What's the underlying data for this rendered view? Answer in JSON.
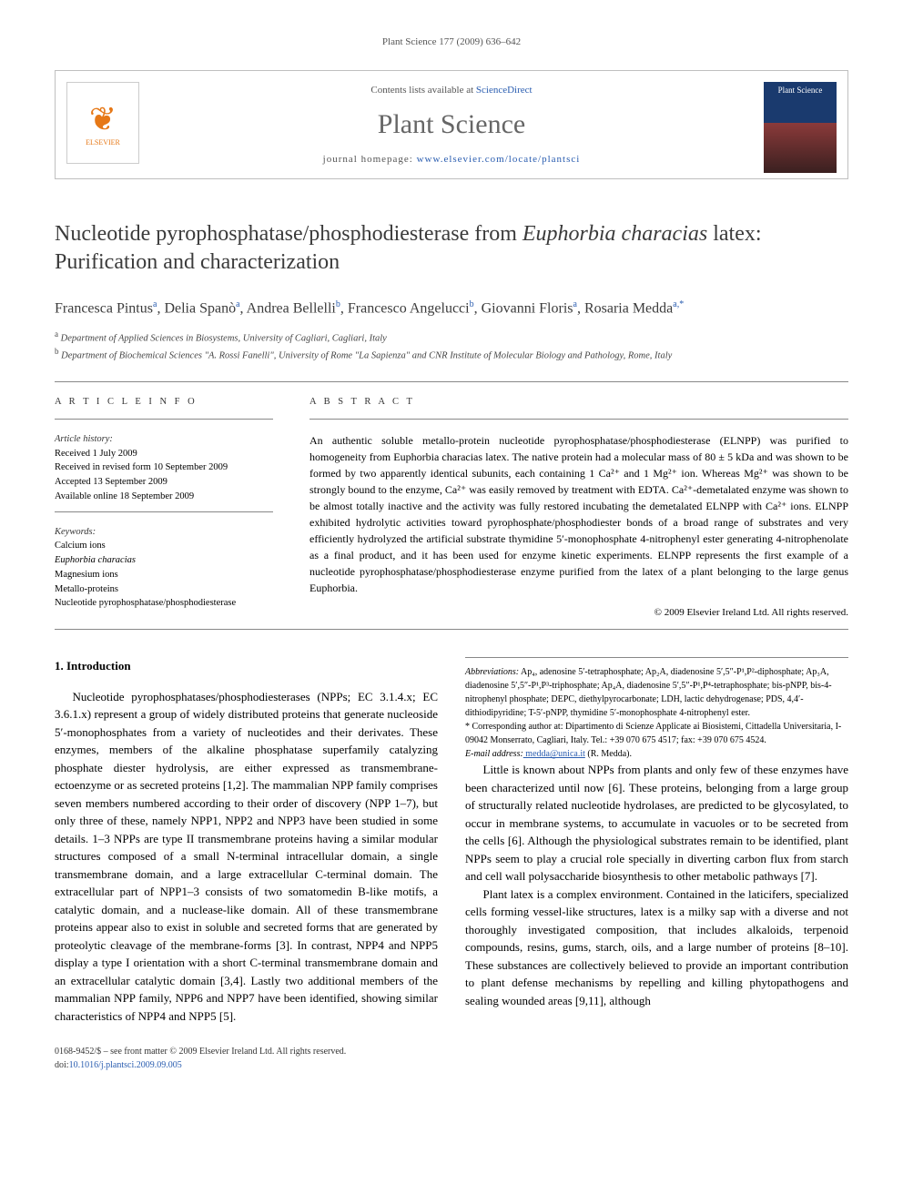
{
  "running_header": "Plant Science 177 (2009) 636–642",
  "masthead": {
    "contents_prefix": "Contents lists available at ",
    "contents_link": "ScienceDirect",
    "journal_name": "Plant Science",
    "homepage_prefix": "journal homepage: ",
    "homepage_url": "www.elsevier.com/locate/plantsci",
    "publisher_logo_label": "ELSEVIER",
    "cover_label": "Plant Science"
  },
  "article": {
    "title_part1": "Nucleotide pyrophosphatase/phosphodiesterase from ",
    "title_italic": "Euphorbia characias",
    "title_part2": " latex: Purification and characterization",
    "authors_html": "Francesca Pintus<sup>a</sup>, Delia Spanò<sup>a</sup>, Andrea Bellelli<sup>b</sup>, Francesco Angelucci<sup>b</sup>, Giovanni Floris<sup>a</sup>, Rosaria Medda<sup>a,*</sup>",
    "affiliations": {
      "a": "Department of Applied Sciences in Biosystems, University of Cagliari, Cagliari, Italy",
      "b": "Department of Biochemical Sciences \"A. Rossi Fanelli\", University of Rome \"La Sapienza\" and CNR Institute of Molecular Biology and Pathology, Rome, Italy"
    }
  },
  "info": {
    "heading": "A R T I C L E   I N F O",
    "history_label": "Article history:",
    "history": [
      "Received 1 July 2009",
      "Received in revised form 10 September 2009",
      "Accepted 13 September 2009",
      "Available online 18 September 2009"
    ],
    "keywords_label": "Keywords:",
    "keywords": [
      "Calcium ions",
      "Euphorbia characias",
      "Magnesium ions",
      "Metallo-proteins",
      "Nucleotide pyrophosphatase/phosphodiesterase"
    ]
  },
  "abstract": {
    "heading": "A B S T R A C T",
    "text": "An authentic soluble metallo-protein nucleotide pyrophosphatase/phosphodiesterase (ELNPP) was purified to homogeneity from Euphorbia characias latex. The native protein had a molecular mass of 80 ± 5 kDa and was shown to be formed by two apparently identical subunits, each containing 1 Ca²⁺ and 1 Mg²⁺ ion. Whereas Mg²⁺ was shown to be strongly bound to the enzyme, Ca²⁺ was easily removed by treatment with EDTA. Ca²⁺-demetalated enzyme was shown to be almost totally inactive and the activity was fully restored incubating the demetalated ELNPP with Ca²⁺ ions. ELNPP exhibited hydrolytic activities toward pyrophosphate/phosphodiester bonds of a broad range of substrates and very efficiently hydrolyzed the artificial substrate thymidine 5′-monophosphate 4-nitrophenyl ester generating 4-nitrophenolate as a final product, and it has been used for enzyme kinetic experiments. ELNPP represents the first example of a nucleotide pyrophosphatase/phosphodiesterase enzyme purified from the latex of a plant belonging to the large genus Euphorbia.",
    "copyright": "© 2009 Elsevier Ireland Ltd. All rights reserved."
  },
  "body": {
    "section_heading": "1. Introduction",
    "p1": "Nucleotide pyrophosphatases/phosphodiesterases (NPPs; EC 3.1.4.x; EC 3.6.1.x) represent a group of widely distributed proteins that generate nucleoside 5′-monophosphates from a variety of nucleotides and their derivates. These enzymes, members of the alkaline phosphatase superfamily catalyzing phosphate diester hydrolysis, are either expressed as transmembrane-ectoenzyme or as secreted proteins [1,2]. The mammalian NPP family comprises seven members numbered according to their order of discovery (NPP 1–7), but only three of these, namely NPP1, NPP2 and NPP3 have been studied in some details. 1–3 NPPs are type II transmembrane proteins having a similar modular structures composed of a small N-terminal intracellular domain, a single transmembrane domain, and a large extracellular C-terminal domain. The extracellular part of NPP1–3 consists of two somatomedin B-like motifs, a catalytic domain, and a nuclease-like domain. All of these transmembrane proteins appear also to exist in soluble and secreted forms that are generated by proteolytic cleavage of the membrane-forms [3]. In contrast, NPP4 and NPP5 display a type I orientation with a short C-terminal transmembrane domain and an extracellular catalytic domain [3,4]. Lastly two additional members of the mammalian NPP family, NPP6 and NPP7 have been identified, showing similar characteristics of NPP4 and NPP5 [5].",
    "p2": "Little is known about NPPs from plants and only few of these enzymes have been characterized until now [6]. These proteins, belonging from a large group of structurally related nucleotide hydrolases, are predicted to be glycosylated, to occur in membrane systems, to accumulate in vacuoles or to be secreted from the cells [6]. Although the physiological substrates remain to be identified, plant NPPs seem to play a crucial role specially in diverting carbon flux from starch and cell wall polysaccharide biosynthesis to other metabolic pathways [7].",
    "p3": "Plant latex is a complex environment. Contained in the laticifers, specialized cells forming vessel-like structures, latex is a milky sap with a diverse and not thoroughly investigated composition, that includes alkaloids, terpenoid compounds, resins, gums, starch, oils, and a large number of proteins [8–10]. These substances are collectively believed to provide an important contribution to plant defense mechanisms by repelling and killing phytopathogens and sealing wounded areas [9,11], although"
  },
  "footnotes": {
    "abbrev_label": "Abbreviations:",
    "abbrev_text": " Ap₄, adenosine 5′-tetraphosphate; Ap₂A, diadenosine 5′,5″-P¹,P²-diphosphate; Ap₃A, diadenosine 5′,5″-P¹,P³-triphosphate; Ap₄A, diadenosine 5′,5″-P¹,P⁴-tetraphosphate; bis-pNPP, bis-4-nitrophenyl phosphate; DEPC, diethylpyrocarbonate; LDH, lactic dehydrogenase; PDS, 4,4′-dithiodipyridine; T-5′-pNPP, thymidine 5′-monophosphate 4-nitrophenyl ester.",
    "corresponding_marker": "*",
    "corresponding_text": " Corresponding author at: Dipartimento di Scienze Applicate ai Biosistemi, Cittadella Universitaria, I-09042 Monserrato, Cagliari, Italy. Tel.: +39 070 675 4517; fax: +39 070 675 4524.",
    "email_label": "E-mail address:",
    "email": " medda@unica.it",
    "email_owner": " (R. Medda)."
  },
  "footer": {
    "line1": "0168-9452/$ – see front matter © 2009 Elsevier Ireland Ltd. All rights reserved.",
    "doi_prefix": "doi:",
    "doi": "10.1016/j.plantsci.2009.09.005"
  },
  "colors": {
    "link": "#2a5db0",
    "text_muted": "#666666",
    "border": "#bfbfbf",
    "elsevier_orange": "#e67817"
  }
}
